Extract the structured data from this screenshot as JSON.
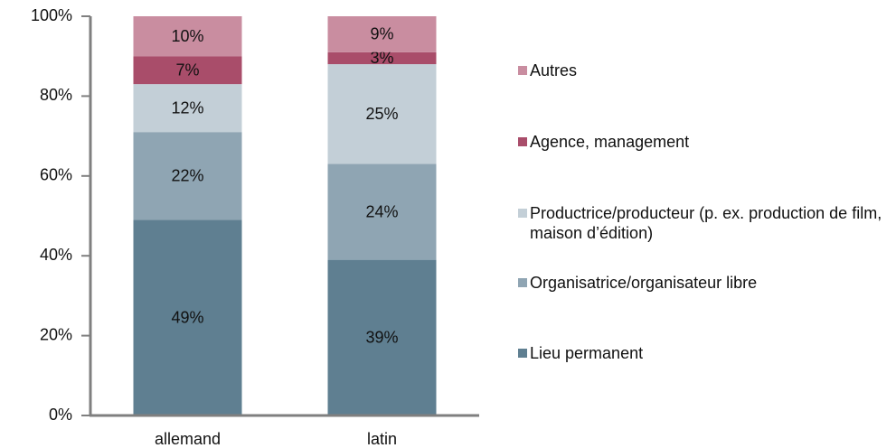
{
  "chart_data": {
    "type": "stacked_bar",
    "categories": [
      "allemand",
      "latin"
    ],
    "series": [
      {
        "name": "Lieu permanent",
        "color": "#5f7f91",
        "values": [
          49,
          39
        ],
        "value_labels": [
          "49%",
          "39%"
        ]
      },
      {
        "name": "Organisatrice/organisateur libre",
        "color": "#8fa5b3",
        "values": [
          22,
          24
        ],
        "value_labels": [
          "22%",
          "24%"
        ]
      },
      {
        "name": "Productrice/producteur (p. ex. production de film, maison d’édition)",
        "color": "#c3cfd7",
        "values": [
          12,
          25
        ],
        "value_labels": [
          "12%",
          "25%"
        ]
      },
      {
        "name": "Agence, management",
        "color": "#a94d6a",
        "values": [
          7,
          3
        ],
        "value_labels": [
          "7%",
          "3%"
        ]
      },
      {
        "name": "Autres",
        "color": "#c98da0",
        "values": [
          10,
          9
        ],
        "value_labels": [
          "10%",
          "9%"
        ]
      }
    ],
    "ylim": [
      0,
      100
    ],
    "yticks": [
      {
        "value": 0,
        "label": "0%"
      },
      {
        "value": 20,
        "label": "20%"
      },
      {
        "value": 40,
        "label": "40%"
      },
      {
        "value": 60,
        "label": "60%"
      },
      {
        "value": 80,
        "label": "80%"
      },
      {
        "value": 100,
        "label": "100%"
      }
    ],
    "legend": "right"
  }
}
